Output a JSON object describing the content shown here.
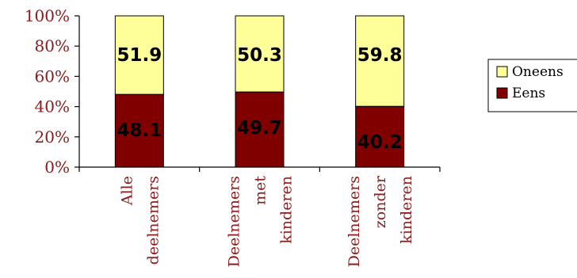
{
  "chart_data": {
    "type": "bar",
    "stacked": true,
    "categories": [
      [
        "Alle",
        "deelnemers"
      ],
      [
        "Deelnemers",
        "met",
        "kinderen"
      ],
      [
        "Deelnemers",
        "zonder",
        "kinderen"
      ]
    ],
    "series": [
      {
        "name": "Eens",
        "values": [
          48.1,
          49.7,
          40.2
        ],
        "color": "#800000"
      },
      {
        "name": "Oneens",
        "values": [
          51.9,
          50.3,
          59.8
        ],
        "color": "#ffff99"
      }
    ],
    "ylim": [
      0,
      100
    ],
    "yticks": [
      "0%",
      "20%",
      "40%",
      "60%",
      "80%",
      "100%"
    ],
    "legend": {
      "placement": "right",
      "entries": [
        "Oneens",
        "Eens"
      ]
    },
    "grid": false
  }
}
